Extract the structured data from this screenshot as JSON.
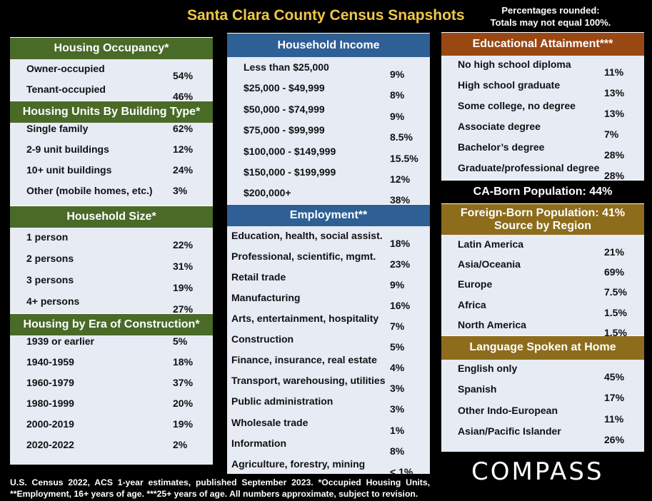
{
  "title": "Santa Clara County Census Snapshots",
  "note": [
    "Percentages rounded:",
    "Totals may not equal 100%."
  ],
  "left": {
    "occupancy": {
      "header": "Housing Occupancy*",
      "rows": [
        {
          "label": "Owner-occupied",
          "value": "54%"
        },
        {
          "label": "Tenant-occupied",
          "value": "46%"
        }
      ]
    },
    "building_type": {
      "header": "Housing Units By Building Type*",
      "rows": [
        {
          "label": "Single family",
          "value": "62%"
        },
        {
          "label": "2-9 unit buildings",
          "value": "12%"
        },
        {
          "label": "10+ unit buildings",
          "value": "24%"
        },
        {
          "label": "Other (mobile homes, etc.)",
          "value": "3%"
        }
      ]
    },
    "household_size": {
      "header": "Household Size*",
      "rows": [
        {
          "label": "1 person",
          "value": "22%"
        },
        {
          "label": "2 persons",
          "value": "31%"
        },
        {
          "label": "3 persons",
          "value": "19%"
        },
        {
          "label": "4+ persons",
          "value": "27%"
        }
      ]
    },
    "era": {
      "header": "Housing by Era of Construction*",
      "rows": [
        {
          "label": "1939 or earlier",
          "value": "5%"
        },
        {
          "label": "1940-1959",
          "value": "18%"
        },
        {
          "label": "1960-1979",
          "value": "37%"
        },
        {
          "label": "1980-1999",
          "value": "20%"
        },
        {
          "label": "2000-2019",
          "value": "19%"
        },
        {
          "label": "2020-2022",
          "value": "2%"
        }
      ]
    }
  },
  "middle": {
    "income": {
      "header": "Household Income",
      "rows": [
        {
          "label": "Less than $25,000",
          "value": "9%"
        },
        {
          "label": "$25,000 - $49,999",
          "value": "8%"
        },
        {
          "label": "$50,000 - $74,999",
          "value": "9%"
        },
        {
          "label": "$75,000 - $99,999",
          "value": "8.5%"
        },
        {
          "label": "$100,000 - $149,999",
          "value": "15.5%"
        },
        {
          "label": "$150,000 - $199,999",
          "value": "12%"
        },
        {
          "label": "$200,000+",
          "value": "38%"
        }
      ]
    },
    "employment": {
      "header": "Employment**",
      "rows": [
        {
          "label": "Education, health, social assist.",
          "value": "18%"
        },
        {
          "label": "Professional, scientific, mgmt.",
          "value": "23%"
        },
        {
          "label": "Retail trade",
          "value": "9%"
        },
        {
          "label": "Manufacturing",
          "value": "16%"
        },
        {
          "label": "Arts, entertainment, hospitality",
          "value": "7%"
        },
        {
          "label": "Construction",
          "value": "5%"
        },
        {
          "label": "Finance, insurance, real estate",
          "value": "4%"
        },
        {
          "label": "Transport, warehousing, utilities",
          "value": "3%"
        },
        {
          "label": "Public administration",
          "value": "3%"
        },
        {
          "label": "Wholesale trade",
          "value": "1%"
        },
        {
          "label": "Information",
          "value": "8%"
        },
        {
          "label": "Agriculture, forestry, mining",
          "value": "< 1%"
        }
      ]
    }
  },
  "right": {
    "education": {
      "header": "Educational Attainment***",
      "rows": [
        {
          "label": "No high school diploma",
          "value": "11%"
        },
        {
          "label": "High school graduate",
          "value": "13%"
        },
        {
          "label": "Some college, no degree",
          "value": "13%"
        },
        {
          "label": "Associate degree",
          "value": "7%"
        },
        {
          "label": "Bachelor’s degree",
          "value": "28%"
        },
        {
          "label": "Graduate/professional degree",
          "value": "28%"
        }
      ]
    },
    "ca_born": "CA-Born Population:  44%",
    "foreign_born": {
      "header_line1": "Foreign-Born Population:  41%",
      "header_line2": "Source by Region",
      "rows": [
        {
          "label": "Latin America",
          "value": "21%"
        },
        {
          "label": "Asia/Oceania",
          "value": "69%"
        },
        {
          "label": "Europe",
          "value": "7.5%"
        },
        {
          "label": "Africa",
          "value": "1.5%"
        },
        {
          "label": "North America",
          "value": "1.5%"
        }
      ]
    },
    "language": {
      "header": "Language Spoken at Home",
      "rows": [
        {
          "label": "English only",
          "value": "45%"
        },
        {
          "label": "Spanish",
          "value": "17%"
        },
        {
          "label": "Other Indo-European",
          "value": "11%"
        },
        {
          "label": "Asian/Pacific Islander",
          "value": "26%"
        }
      ]
    }
  },
  "footer": [
    "U.S. Census 2022, ACS 1-year estimates, published September 2023. *Occupied Housing Units,",
    "**Employment, 16+ years of age. ***25+ years of age. All numbers approximate, subject to revision."
  ],
  "logo": "COMPASS",
  "colors": {
    "background": "#000000",
    "title": "#f0c848",
    "panel": "#e6ebf4",
    "green": "#4a6a28",
    "blue": "#2e5f95",
    "orange": "#9a4813",
    "gold": "#8d6c1c"
  }
}
